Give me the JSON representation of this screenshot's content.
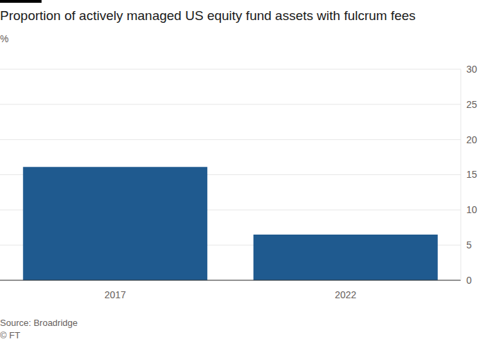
{
  "chart_data": {
    "type": "bar",
    "title": "Proportion of actively managed US equity fund assets with fulcrum fees",
    "subtitle": "%",
    "categories": [
      "2017",
      "2022"
    ],
    "values": [
      16.1,
      6.5
    ],
    "color": "#1f5a8f",
    "ylim": [
      0,
      30
    ],
    "yticks": [
      0,
      5,
      10,
      15,
      20,
      25,
      30
    ],
    "grid": true,
    "annotations": [
      "Source: Broadridge",
      "© FT"
    ]
  }
}
